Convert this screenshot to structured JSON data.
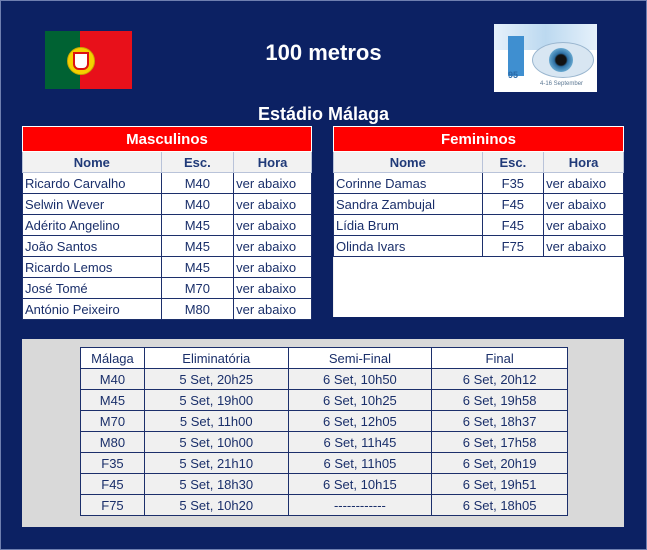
{
  "header": {
    "title": "100 metros",
    "venue": "Estádio Málaga",
    "event_logo_number": "95",
    "event_logo_dates": "4-16 September",
    "flag_colors": [
      "#006233",
      "#e8101a"
    ]
  },
  "men": {
    "group_label": "Masculinos",
    "columns": [
      "Nome",
      "Esc.",
      "Hora"
    ],
    "rows": [
      {
        "name": "Ricardo Carvalho",
        "cat": "M40",
        "time": "ver abaixo"
      },
      {
        "name": "Selwin Wever",
        "cat": "M40",
        "time": "ver abaixo"
      },
      {
        "name": "Adérito Angelino",
        "cat": "M45",
        "time": "ver abaixo"
      },
      {
        "name": "João Santos",
        "cat": "M45",
        "time": "ver abaixo"
      },
      {
        "name": "Ricardo Lemos",
        "cat": "M45",
        "time": "ver abaixo"
      },
      {
        "name": "José Tomé",
        "cat": "M70",
        "time": "ver abaixo"
      },
      {
        "name": "António Peixeiro",
        "cat": "M80",
        "time": "ver abaixo"
      }
    ]
  },
  "women": {
    "group_label": "Femininos",
    "columns": [
      "Nome",
      "Esc.",
      "Hora"
    ],
    "rows": [
      {
        "name": "Corinne Damas",
        "cat": "F35",
        "time": "ver abaixo"
      },
      {
        "name": "Sandra Zambujal",
        "cat": "F45",
        "time": "ver abaixo"
      },
      {
        "name": "Lídia Brum",
        "cat": "F45",
        "time": "ver abaixo"
      },
      {
        "name": "Olinda Ivars",
        "cat": "F75",
        "time": "ver abaixo"
      }
    ]
  },
  "schedule": {
    "columns": [
      "Málaga",
      "Eliminatória",
      "Semi-Final",
      "Final"
    ],
    "rows": [
      {
        "cat": "M40",
        "heat": "5 Set, 20h25",
        "semi": "6 Set, 10h50",
        "final": "6 Set, 20h12"
      },
      {
        "cat": "M45",
        "heat": "5 Set, 19h00",
        "semi": "6 Set, 10h25",
        "final": "6 Set, 19h58"
      },
      {
        "cat": "M70",
        "heat": "5 Set, 11h00",
        "semi": "6 Set, 12h05",
        "final": "6 Set, 18h37"
      },
      {
        "cat": "M80",
        "heat": "5 Set, 10h00",
        "semi": "6 Set, 11h45",
        "final": "6 Set, 17h58"
      },
      {
        "cat": "F35",
        "heat": "5 Set, 21h10",
        "semi": "6 Set, 11h05",
        "final": "6 Set, 20h19"
      },
      {
        "cat": "F45",
        "heat": "5 Set, 18h30",
        "semi": "6 Set, 10h15",
        "final": "6 Set, 19h51"
      },
      {
        "cat": "F75",
        "heat": "5 Set, 10h20",
        "semi": "------------",
        "final": "6 Set, 18h05"
      }
    ]
  }
}
